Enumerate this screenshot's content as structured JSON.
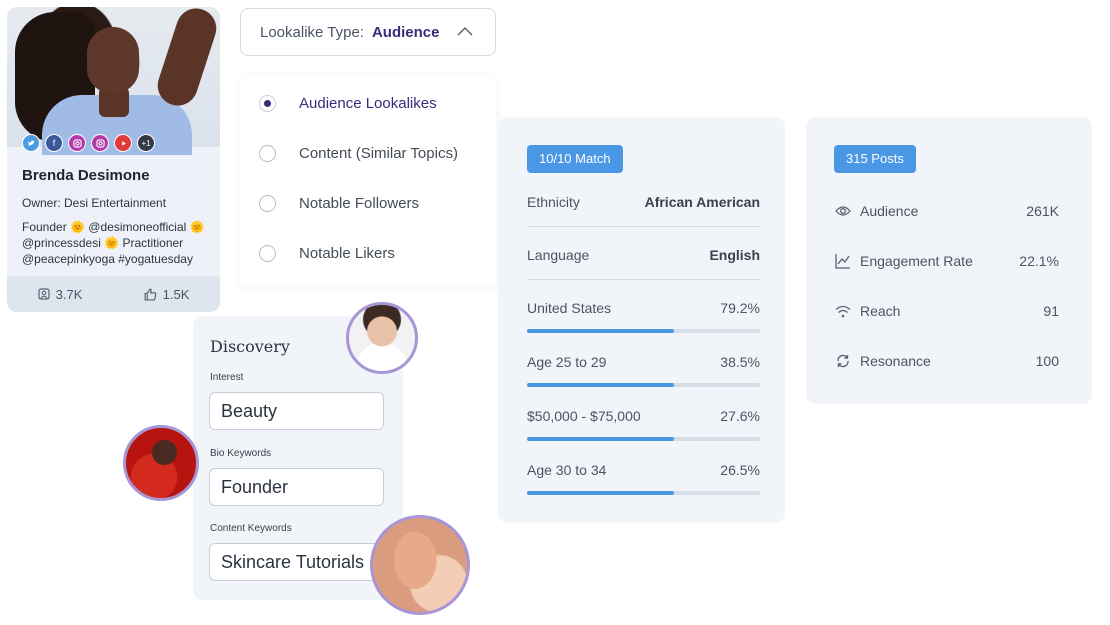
{
  "profile": {
    "name": "Brenda Desimone",
    "owner": "Owner: Desi Entertainment",
    "bio_line1": "Founder 🌞 @desimoneofficial 🌞",
    "bio_line2": "@princessdesi 🌞 Practitioner",
    "bio_line3": "@peacepinkyoga #yogatuesday",
    "stat_followers": "3.7K",
    "stat_likes": "1.5K",
    "social_icons": [
      "twitter-icon",
      "facebook-icon",
      "instagram-icon",
      "instagram-icon",
      "youtube-icon",
      "more-icon"
    ],
    "more_count": "+1"
  },
  "lookalike": {
    "label": "Lookalike Type:",
    "value": "Audience",
    "options": [
      {
        "label": "Audience Lookalikes",
        "selected": true
      },
      {
        "label": "Content (Similar Topics)",
        "selected": false
      },
      {
        "label": "Notable Followers",
        "selected": false
      },
      {
        "label": "Notable Likers",
        "selected": false
      }
    ]
  },
  "discovery": {
    "title": "Discovery",
    "interest_label": "Interest",
    "interest_value": "Beauty",
    "bio_label": "Bio Keywords",
    "bio_value": "Founder",
    "content_label": "Content Keywords",
    "content_value": "Skincare Tutorials"
  },
  "match": {
    "badge": "10/10 Match",
    "ethnicity_label": "Ethnicity",
    "ethnicity_value": "African American",
    "language_label": "Language",
    "language_value": "English",
    "bars": [
      {
        "label": "United States",
        "value": "79.2%",
        "fill": 0.63
      },
      {
        "label": "Age 25 to 29",
        "value": "38.5%",
        "fill": 0.63
      },
      {
        "label": "$50,000 - $75,000",
        "value": "27.6%",
        "fill": 0.63
      },
      {
        "label": "Age 30 to 34",
        "value": "26.5%",
        "fill": 0.63
      }
    ]
  },
  "posts": {
    "badge": "315 Posts",
    "rows": [
      {
        "label": "Audience",
        "value": "261K",
        "icon": "eye-icon"
      },
      {
        "label": "Engagement Rate",
        "value": "22.1%",
        "icon": "trend-chart-icon"
      },
      {
        "label": "Reach",
        "value": "91",
        "icon": "wifi-icon"
      },
      {
        "label": "Resonance",
        "value": "100",
        "icon": "refresh-icon"
      }
    ]
  },
  "colors": {
    "accent": "#4a97e6",
    "brand_purple": "#3b2b7a",
    "card_bg": "#f1f4f9"
  }
}
